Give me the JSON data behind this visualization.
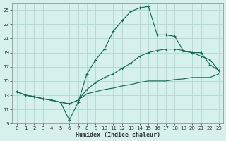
{
  "xlabel": "Humidex (Indice chaleur)",
  "bg_color": "#d6f0ec",
  "grid_color": "#b0d8d2",
  "line_color": "#1a6b5a",
  "xlim": [
    -0.5,
    23.5
  ],
  "ylim": [
    9,
    26
  ],
  "xticks": [
    0,
    1,
    2,
    3,
    4,
    5,
    6,
    7,
    8,
    9,
    10,
    11,
    12,
    13,
    14,
    15,
    16,
    17,
    18,
    19,
    20,
    21,
    22,
    23
  ],
  "yticks": [
    9,
    11,
    13,
    15,
    17,
    19,
    21,
    23,
    25
  ],
  "line1_x": [
    0,
    1,
    2,
    3,
    4,
    5,
    6,
    7,
    8,
    9,
    10,
    11,
    12,
    13,
    14,
    15,
    16,
    17,
    18,
    19,
    20,
    21,
    22,
    23
  ],
  "line1_y": [
    13.5,
    13.0,
    12.8,
    12.5,
    12.3,
    12.0,
    9.5,
    12.0,
    16.0,
    18.0,
    19.5,
    22.0,
    23.5,
    24.8,
    25.3,
    25.5,
    21.5,
    21.5,
    21.3,
    19.2,
    19.0,
    19.0,
    17.3,
    16.5
  ],
  "line2_x": [
    0,
    1,
    2,
    3,
    4,
    5,
    6,
    7,
    8,
    9,
    10,
    11,
    12,
    13,
    14,
    15,
    16,
    17,
    18,
    19,
    20,
    21,
    22,
    23
  ],
  "line2_y": [
    13.5,
    13.0,
    12.8,
    12.5,
    12.3,
    12.0,
    11.8,
    12.3,
    13.8,
    14.8,
    15.5,
    16.0,
    16.8,
    17.5,
    18.5,
    19.0,
    19.3,
    19.5,
    19.5,
    19.3,
    19.0,
    18.5,
    18.0,
    16.5
  ],
  "line3_x": [
    0,
    1,
    2,
    3,
    4,
    5,
    6,
    7,
    8,
    9,
    10,
    11,
    12,
    13,
    14,
    15,
    16,
    17,
    18,
    19,
    20,
    21,
    22,
    23
  ],
  "line3_y": [
    13.5,
    13.0,
    12.8,
    12.5,
    12.3,
    12.0,
    11.8,
    12.3,
    13.2,
    13.5,
    13.8,
    14.0,
    14.3,
    14.5,
    14.8,
    15.0,
    15.0,
    15.0,
    15.2,
    15.3,
    15.5,
    15.5,
    15.5,
    16.0
  ]
}
